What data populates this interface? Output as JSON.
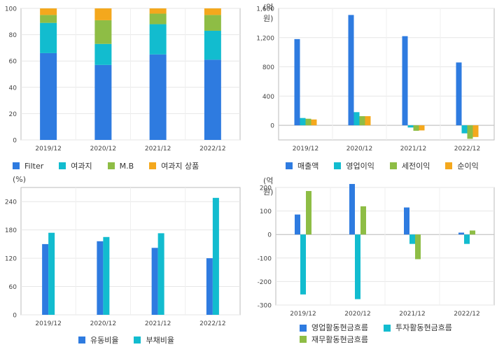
{
  "chart_data": [
    {
      "type": "bar",
      "stacked": true,
      "unit": "",
      "categories": [
        "2019/12",
        "2020/12",
        "2021/12",
        "2022/12"
      ],
      "ylim": [
        0,
        100
      ],
      "yticks": [
        0,
        20,
        40,
        60,
        80,
        100
      ],
      "series": [
        {
          "name": "Filter",
          "color": "#2e7be0",
          "values": [
            66,
            57,
            65,
            61
          ]
        },
        {
          "name": "여과지",
          "color": "#12bccf",
          "values": [
            23,
            16,
            23,
            22
          ]
        },
        {
          "name": "M.B",
          "color": "#8ebd45",
          "values": [
            6,
            18,
            8,
            12
          ]
        },
        {
          "name": "여과지 상품",
          "color": "#f4a81d",
          "values": [
            5,
            9,
            4,
            5
          ]
        }
      ],
      "grid": true,
      "legend": "bottom"
    },
    {
      "type": "bar",
      "stacked": false,
      "unit": "(억원)",
      "categories": [
        "2019/12",
        "2020/12",
        "2021/12",
        "2022/12"
      ],
      "ylim": [
        -200,
        1600
      ],
      "yticks": [
        0,
        400,
        800,
        1200,
        1600
      ],
      "ytick_labels": [
        "0",
        "400",
        "800",
        "1,200",
        "1,600"
      ],
      "series": [
        {
          "name": "매출액",
          "color": "#2e7be0",
          "values": [
            1180,
            1510,
            1220,
            860
          ]
        },
        {
          "name": "영업이익",
          "color": "#12bccf",
          "values": [
            100,
            180,
            -30,
            -110
          ]
        },
        {
          "name": "세전이익",
          "color": "#8ebd45",
          "values": [
            90,
            125,
            -75,
            -185
          ]
        },
        {
          "name": "순이익",
          "color": "#f4a81d",
          "values": [
            80,
            125,
            -70,
            -160
          ]
        }
      ],
      "grid": true,
      "legend": "bottom"
    },
    {
      "type": "bar",
      "stacked": false,
      "unit": "(%)",
      "categories": [
        "2019/12",
        "2020/12",
        "2021/12",
        "2022/12"
      ],
      "ylim": [
        0,
        270
      ],
      "yticks": [
        0,
        60,
        120,
        180,
        240
      ],
      "ytick_labels": [
        "0",
        "60",
        "120",
        "180",
        "240"
      ],
      "series": [
        {
          "name": "유동비율",
          "color": "#2e7be0",
          "values": [
            150,
            156,
            142,
            120
          ]
        },
        {
          "name": "부채비율",
          "color": "#12bccf",
          "values": [
            174,
            165,
            173,
            248
          ]
        }
      ],
      "grid": true,
      "legend": "bottom"
    },
    {
      "type": "bar",
      "stacked": false,
      "unit": "(억원)",
      "categories": [
        "2019/12",
        "2020/12",
        "2021/12",
        "2022/12"
      ],
      "ylim": [
        -300,
        200
      ],
      "yticks": [
        -300,
        -200,
        -100,
        0,
        100,
        200
      ],
      "ytick_labels": [
        "-300",
        "-200",
        "-100",
        "0",
        "100",
        "200"
      ],
      "series": [
        {
          "name": "영업활동현금흐름",
          "color": "#2e7be0",
          "values": [
            85,
            215,
            115,
            8
          ]
        },
        {
          "name": "투자활동현금흐름",
          "color": "#12bccf",
          "values": [
            -255,
            -275,
            -40,
            -40
          ]
        },
        {
          "name": "재무활동현금흐름",
          "color": "#8ebd45",
          "values": [
            185,
            120,
            -105,
            17
          ]
        }
      ],
      "grid": true,
      "legend": "bottom"
    }
  ]
}
